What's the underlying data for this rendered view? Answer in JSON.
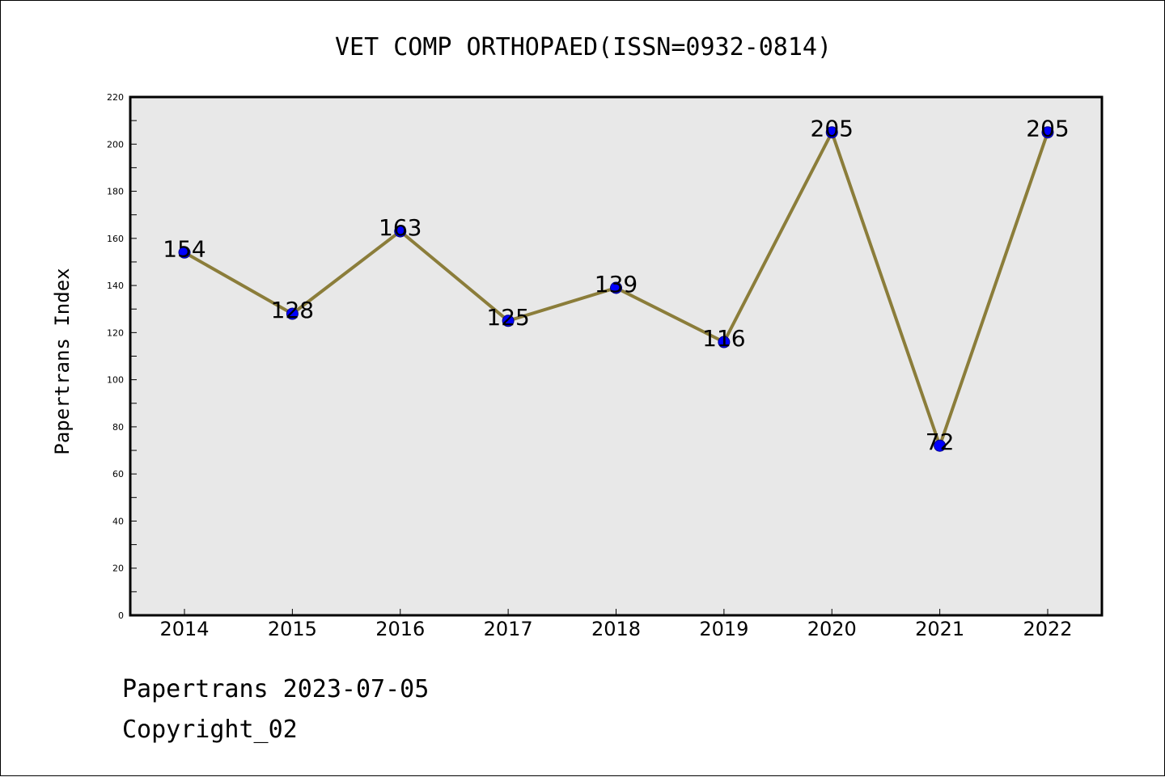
{
  "chart_data": {
    "type": "line",
    "title": "VET COMP ORTHOPAED(ISSN=0932-0814)",
    "xlabel": "",
    "ylabel": "Papertrans Index",
    "categories": [
      "2014",
      "2015",
      "2016",
      "2017",
      "2018",
      "2019",
      "2020",
      "2021",
      "2022"
    ],
    "series": [
      {
        "values": [
          154,
          128,
          163,
          125,
          139,
          116,
          205,
          72,
          205
        ]
      }
    ],
    "data_labels": [
      "154",
      "128",
      "163",
      "125",
      "139",
      "116",
      "205",
      "72",
      "205"
    ],
    "ylim": [
      0,
      220
    ],
    "yticks": [
      "0",
      "20",
      "40",
      "60",
      "80",
      "100",
      "120",
      "140",
      "160",
      "180",
      "200",
      "220"
    ],
    "grid": false,
    "line_color": "#8b7d3a",
    "marker_color": "#0000ff",
    "plot_background": "#e8e8e8"
  },
  "footer": {
    "date_line": "Papertrans 2023-07-05",
    "copyright_line": "Copyright_02"
  }
}
